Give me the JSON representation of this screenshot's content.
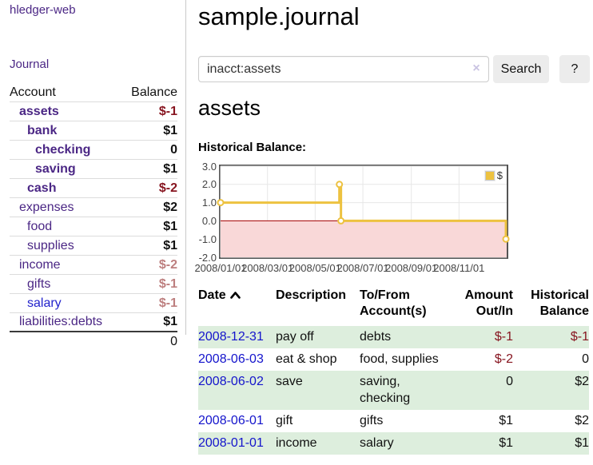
{
  "colors": {
    "purple_link": "#4b2785",
    "blue_link": "#1414cc",
    "negative": "#871520",
    "negative_muted": "#bd7f7f",
    "row_shade_green": "#ddeedd",
    "chart_line": "#edc240",
    "chart_negative_fill": "#f9d8d8",
    "chart_zero_line": "#a40000"
  },
  "sidebar": {
    "brand": "hledger-web",
    "journal_link": "Journal",
    "accounts_table": {
      "headers": [
        "Account",
        "Balance"
      ],
      "rows": [
        {
          "name": "assets",
          "level": 1,
          "balance": "$-1",
          "bold": true,
          "balance_style": "negative"
        },
        {
          "name": "bank",
          "level": 2,
          "balance": "$1",
          "bold": true,
          "balance_style": "normal"
        },
        {
          "name": "checking",
          "level": 3,
          "balance": "0",
          "bold": true,
          "balance_style": "normal"
        },
        {
          "name": "saving",
          "level": 3,
          "balance": "$1",
          "bold": true,
          "balance_style": "normal"
        },
        {
          "name": "cash",
          "level": 2,
          "balance": "$-2",
          "bold": true,
          "balance_style": "negative"
        },
        {
          "name": "expenses",
          "level": 1,
          "balance": "$2",
          "bold": false,
          "balance_style": "normal"
        },
        {
          "name": "food",
          "level": 2,
          "balance": "$1",
          "bold": false,
          "balance_style": "normal"
        },
        {
          "name": "supplies",
          "level": 2,
          "balance": "$1",
          "bold": false,
          "balance_style": "normal"
        },
        {
          "name": "income",
          "level": 1,
          "balance": "$-2",
          "bold": false,
          "balance_style": "negative-muted"
        },
        {
          "name": "gifts",
          "level": 2,
          "balance": "$-1",
          "bold": false,
          "balance_style": "negative-muted"
        },
        {
          "name": "salary",
          "level": 2,
          "balance": "$-1",
          "bold": false,
          "balance_style": "negative-muted",
          "link_color": "blue"
        },
        {
          "name": "liabilities:debts",
          "level": 1,
          "balance": "$1",
          "bold": false,
          "balance_style": "normal"
        }
      ],
      "total": "0"
    }
  },
  "header": {
    "title": "sample.journal"
  },
  "search": {
    "value": "inacct:assets",
    "clear_icon": "×",
    "button_label": "Search",
    "help_label": "?"
  },
  "account_section": {
    "title": "assets",
    "chart_heading": "Historical Balance:"
  },
  "chart_data": {
    "type": "line",
    "title": "Historical Balance",
    "x_domain": [
      "2008-01-01",
      "2009-01-01"
    ],
    "ylim": [
      -2,
      3
    ],
    "grid": true,
    "yticks": [
      {
        "label": "3.0",
        "value": 3
      },
      {
        "label": "2.0",
        "value": 2
      },
      {
        "label": "1.0",
        "value": 1
      },
      {
        "label": "0.0",
        "value": 0
      },
      {
        "label": "-1.0",
        "value": -1
      },
      {
        "label": "-2.0",
        "value": -2
      }
    ],
    "xticks": [
      {
        "label": "2008/01/01",
        "date": "2008-01-01"
      },
      {
        "label": "2008/03/01",
        "date": "2008-03-01"
      },
      {
        "label": "2008/05/01",
        "date": "2008-05-01"
      },
      {
        "label": "2008/07/01",
        "date": "2008-07-01"
      },
      {
        "label": "2008/09/01",
        "date": "2008-09-01"
      },
      {
        "label": "2008/11/01",
        "date": "2008-11-01"
      }
    ],
    "series": [
      {
        "name": "$",
        "color": "#edc240",
        "step": true,
        "points": [
          {
            "x": "2008-01-01",
            "y": 1
          },
          {
            "x": "2008-06-01",
            "y": 2
          },
          {
            "x": "2008-06-03",
            "y": 0
          },
          {
            "x": "2008-12-31",
            "y": -1
          }
        ]
      }
    ],
    "legend": {
      "label": "$",
      "position": "top-right"
    },
    "zero_line_color": "#a40000",
    "negative_region_color": "#f9d8d8"
  },
  "register_table": {
    "headers": [
      {
        "label": "Date",
        "align": "left",
        "sorted": "asc"
      },
      {
        "label": "Description",
        "align": "left"
      },
      {
        "label": "To/From Account(s)",
        "align": "left"
      },
      {
        "label": "Amount Out/In",
        "align": "right"
      },
      {
        "label": "Historical Balance",
        "align": "right"
      }
    ],
    "rows": [
      {
        "date": "2008-12-31",
        "description": "pay off",
        "accounts": "debts",
        "amount": "$-1",
        "amount_negative": true,
        "balance": "$-1",
        "balance_negative": true,
        "shaded": true
      },
      {
        "date": "2008-06-03",
        "description": "eat & shop",
        "accounts": "food, supplies",
        "amount": "$-2",
        "amount_negative": true,
        "balance": "0",
        "balance_negative": false,
        "shaded": false
      },
      {
        "date": "2008-06-02",
        "description": "save",
        "accounts": "saving, checking",
        "amount": "0",
        "amount_negative": false,
        "balance": "$2",
        "balance_negative": false,
        "shaded": true
      },
      {
        "date": "2008-06-01",
        "description": "gift",
        "accounts": "gifts",
        "amount": "$1",
        "amount_negative": false,
        "balance": "$2",
        "balance_negative": false,
        "shaded": false
      },
      {
        "date": "2008-01-01",
        "description": "income",
        "accounts": "salary",
        "amount": "$1",
        "amount_negative": false,
        "balance": "$1",
        "balance_negative": false,
        "shaded": true
      }
    ]
  }
}
